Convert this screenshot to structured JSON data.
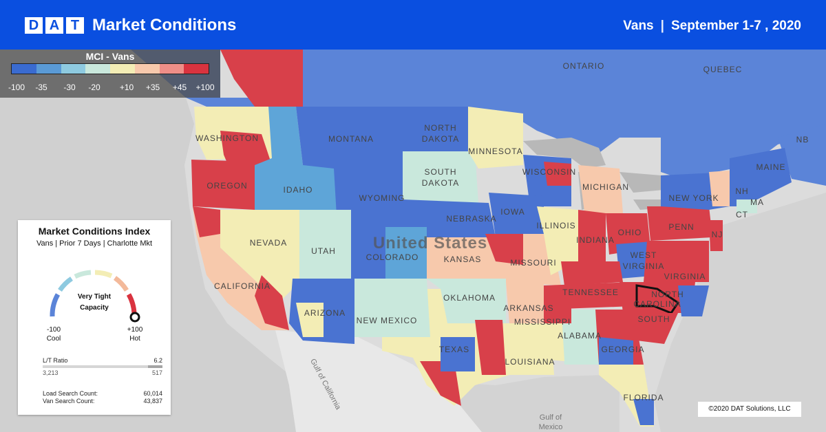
{
  "header": {
    "logo_letters": [
      "D",
      "A",
      "T"
    ],
    "title": "Market Conditions",
    "equipment": "Vans",
    "separator": "|",
    "period": "September 1-7 , 2020",
    "background_color": "#0a4fe0"
  },
  "legend": {
    "title": "MCI - Vans",
    "colors": [
      "#3a6bd0",
      "#5a9ad6",
      "#8ecae0",
      "#c9e8dc",
      "#f3edb5",
      "#f7c9ac",
      "#ee8e88",
      "#d9333f"
    ],
    "ticks": [
      "-100",
      "-35",
      "-30",
      "-20",
      "+10",
      "+35",
      "+45",
      "+100"
    ]
  },
  "map": {
    "labels": {
      "ontario": "ONTARIO",
      "quebec": "QUEBEC",
      "washington": "WASHINGTON",
      "montana": "MONTANA",
      "north_dakota_1": "NORTH",
      "north_dakota_2": "DAKOTA",
      "minnesota": "MINNESOTA",
      "oregon": "OREGON",
      "idaho": "IDAHO",
      "south_dakota_1": "SOUTH",
      "south_dakota_2": "DAKOTA",
      "wisconsin": "WISCONSIN",
      "michigan": "MICHIGAN",
      "wyoming": "WYOMING",
      "nebraska": "NEBRASKA",
      "iowa": "IOWA",
      "nevada": "NEVADA",
      "utah": "UTAH",
      "united_states": "United States",
      "colorado": "COLORADO",
      "kansas": "KANSAS",
      "missouri": "MISSOURI",
      "illinois": "ILLINOIS",
      "indiana": "INDIANA",
      "ohio": "OHIO",
      "penn": "PENN",
      "new_york": "NEW YORK",
      "maine": "MAINE",
      "nb": "NB",
      "nh": "NH",
      "ma": "MA",
      "ct": "CT",
      "nj": "NJ",
      "west_virginia_1": "WEST",
      "west_virginia_2": "VIRGINIA",
      "virginia": "VIRGINIA",
      "california": "CALIFORNIA",
      "arizona": "ARIZONA",
      "new_mexico": "NEW MEXICO",
      "oklahoma": "OKLAHOMA",
      "arkansas": "ARKANSAS",
      "tennessee": "TENNESSEE",
      "north_carolina_1": "NORTH",
      "north_carolina_2": "CAROLINA",
      "south_carolina": "SOUTH",
      "mississippi": "MISSISSIPPI",
      "alabama": "ALABAMA",
      "georgia": "GEORGIA",
      "texas": "TEXAS",
      "louisiana": "LOUISIANA",
      "florida": "FLORIDA",
      "gulf_of_california": "Gulf of California",
      "gulf_of_mexico_1": "Gulf of",
      "gulf_of_mexico_2": "Mexico"
    }
  },
  "card": {
    "title": "Market Conditions Index",
    "subtitle": "Vans | Prior 7 Days | Charlotte Mkt",
    "gauge_text_1": "Very Tight",
    "gauge_text_2": "Capacity",
    "gauge_min": "-100",
    "gauge_min_label": "Cool",
    "gauge_max": "+100",
    "gauge_max_label": "Hot",
    "lt_ratio_label": "L/T Ratio",
    "lt_ratio_value": "6.2",
    "lt_ratio_fill_fraction": 0.12,
    "lt_left_value": "3,213",
    "lt_right_value": "517",
    "load_search_label": "Load Search Count:",
    "load_search_value": "60,014",
    "van_search_label": "Van Search Count:",
    "van_search_value": "43,837"
  },
  "copyright": "©2020 DAT Solutions, LLC"
}
